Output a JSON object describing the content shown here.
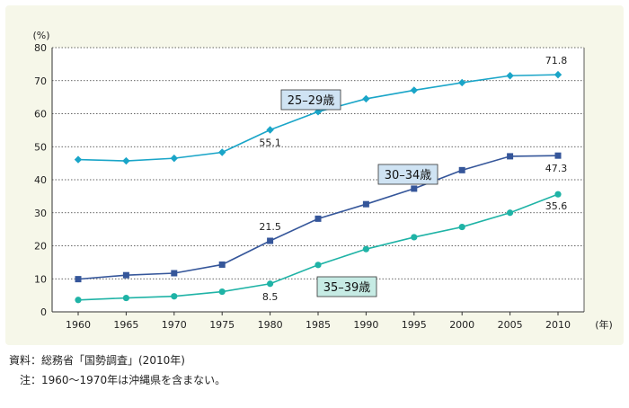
{
  "chart_data": {
    "type": "line",
    "y_unit_label": "(%)",
    "x_unit_label": "(年)",
    "x": [
      "1960",
      "1965",
      "1970",
      "1975",
      "1980",
      "1985",
      "1990",
      "1995",
      "2000",
      "2005",
      "2010"
    ],
    "ylim": [
      0,
      80
    ],
    "yticks": [
      0,
      10,
      20,
      30,
      40,
      50,
      60,
      70,
      80
    ],
    "grid": true,
    "series": [
      {
        "name": "25–29歳",
        "color": "#1aa5c8",
        "marker": "diamond",
        "label_fill": "#cfe3f3",
        "values": [
          46.1,
          45.7,
          46.5,
          48.3,
          55.1,
          60.6,
          64.5,
          67.1,
          69.4,
          71.5,
          71.8
        ]
      },
      {
        "name": "30–34歳",
        "color": "#35569a",
        "marker": "square",
        "label_fill": "#cfe3f3",
        "values": [
          9.9,
          11.1,
          11.7,
          14.3,
          21.5,
          28.2,
          32.6,
          37.3,
          42.9,
          47.1,
          47.3
        ]
      },
      {
        "name": "35–39歳",
        "color": "#1fb3a6",
        "marker": "circle",
        "label_fill": "#c6ebe4",
        "values": [
          3.6,
          4.2,
          4.7,
          6.1,
          8.5,
          14.2,
          19.0,
          22.6,
          25.7,
          30.0,
          35.6
        ]
      }
    ],
    "annotations": [
      {
        "series": 0,
        "index": 4,
        "text": "55.1"
      },
      {
        "series": 0,
        "index": 10,
        "text": "71.8"
      },
      {
        "series": 1,
        "index": 4,
        "text": "21.5"
      },
      {
        "series": 1,
        "index": 10,
        "text": "47.3"
      },
      {
        "series": 2,
        "index": 4,
        "text": "8.5"
      },
      {
        "series": 2,
        "index": 10,
        "text": "35.6"
      }
    ]
  },
  "notes": {
    "source": "資料：総務省「国勢調査」(2010年)",
    "note": "　注：1960〜1970年は沖縄県を含まない。"
  }
}
